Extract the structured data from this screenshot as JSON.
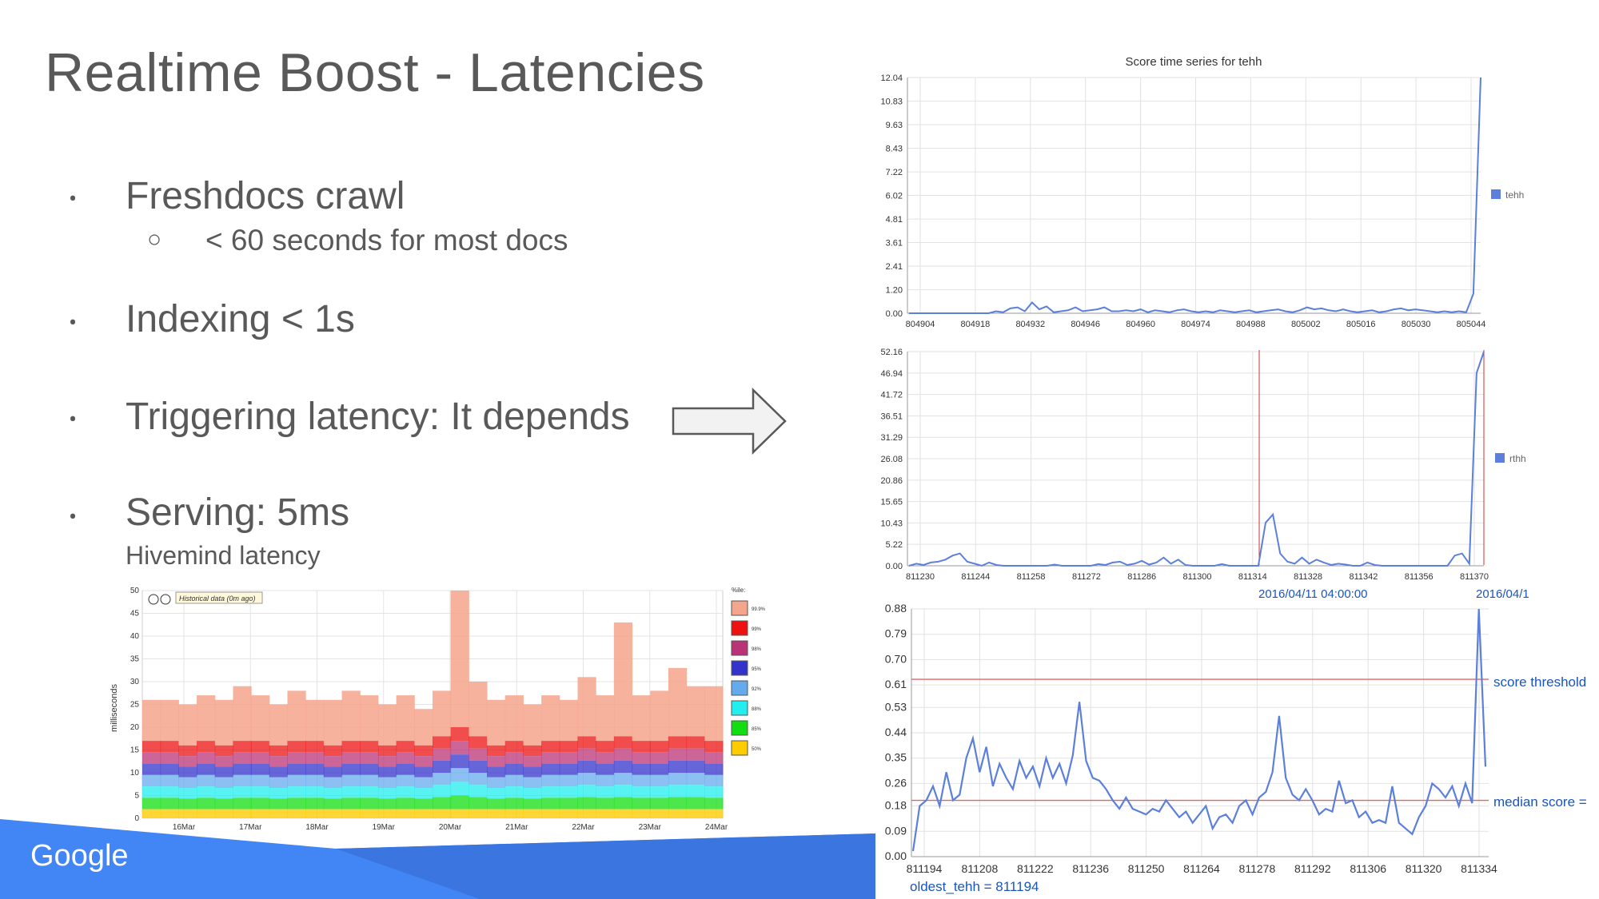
{
  "slide": {
    "title": "Realtime Boost - Latencies",
    "bullets": [
      {
        "text": "Freshdocs crawl",
        "sub": "< 60 seconds for most docs"
      },
      {
        "text": "Indexing < 1s"
      },
      {
        "text": "Triggering latency: It depends"
      },
      {
        "text": "Serving: 5ms",
        "caption": "Hivemind latency"
      }
    ],
    "bullet_glyph": "•",
    "sub_glyph": "○",
    "logo": "Google",
    "footer_color": "#4285f4"
  },
  "hivemind": {
    "badge": "Historical data (0m ago)",
    "ylabel": "milliseconds",
    "legend_title": "%ile:",
    "legend": [
      {
        "label": "99.9%",
        "color": "#f4a58c"
      },
      {
        "label": "99%",
        "color": "#ee1111"
      },
      {
        "label": "98%",
        "color": "#bb3377"
      },
      {
        "label": "95%",
        "color": "#3333cc"
      },
      {
        "label": "92%",
        "color": "#66aaee"
      },
      {
        "label": "88%",
        "color": "#22eeee"
      },
      {
        "label": "85%",
        "color": "#11dd11"
      },
      {
        "label": "50%",
        "color": "#ffcc00"
      }
    ]
  },
  "chart_data": [
    {
      "type": "area",
      "title": "",
      "ylabel": "milliseconds",
      "ylim": [
        0,
        50
      ],
      "yticks": [
        "0",
        "5",
        "10",
        "15",
        "20",
        "25",
        "30",
        "35",
        "40",
        "45",
        "50"
      ],
      "x_ticks": [
        "16Mar",
        "17Mar",
        "18Mar",
        "19Mar",
        "20Mar",
        "21Mar",
        "22Mar",
        "23Mar",
        "24Mar"
      ],
      "series": [
        {
          "name": "99.9%",
          "values": [
            26,
            26,
            25,
            27,
            26,
            29,
            27,
            25,
            28,
            26,
            26,
            28,
            27,
            25,
            27,
            24,
            28,
            50,
            30,
            26,
            27,
            25,
            27,
            26,
            31,
            27,
            43,
            27,
            28,
            33,
            29,
            29
          ]
        },
        {
          "name": "99%",
          "values": [
            17,
            17,
            16,
            17,
            16,
            17,
            17,
            16,
            17,
            17,
            16,
            17,
            17,
            16,
            17,
            16,
            18,
            20,
            18,
            16,
            17,
            16,
            17,
            17,
            18,
            17,
            18,
            17,
            17,
            18,
            18,
            17
          ]
        },
        {
          "name": "50%",
          "values": [
            2,
            2,
            2,
            2,
            2,
            2,
            2,
            2,
            2,
            2,
            2,
            2,
            2,
            2,
            2,
            2,
            2,
            2,
            2,
            2,
            2,
            2,
            2,
            2,
            2,
            2,
            2,
            2,
            2,
            2,
            2,
            2
          ]
        }
      ]
    },
    {
      "type": "line",
      "title": "Score time series for tehh",
      "ylim": [
        0,
        12.04
      ],
      "yticks": [
        "0.00",
        "1.20",
        "2.41",
        "3.61",
        "4.81",
        "6.02",
        "7.22",
        "8.43",
        "9.63",
        "10.83",
        "12.04"
      ],
      "x_ticks": [
        "804904",
        "804918",
        "804932",
        "804946",
        "804960",
        "804974",
        "804988",
        "805002",
        "805016",
        "805030",
        "805044"
      ],
      "series": [
        {
          "name": "tehh",
          "color": "#5b7fdb",
          "values": [
            0,
            0,
            0,
            0,
            0,
            0,
            0,
            0,
            0,
            0,
            0,
            0,
            0.1,
            0.05,
            0.25,
            0.3,
            0.1,
            0.55,
            0.2,
            0.35,
            0.05,
            0.1,
            0.15,
            0.3,
            0.1,
            0.15,
            0.2,
            0.3,
            0.1,
            0.1,
            0.15,
            0.1,
            0.2,
            0.05,
            0.15,
            0.1,
            0.05,
            0.15,
            0.2,
            0.1,
            0.05,
            0.1,
            0.05,
            0.15,
            0.1,
            0.05,
            0.1,
            0.15,
            0.05,
            0.1,
            0.15,
            0.2,
            0.1,
            0.05,
            0.15,
            0.3,
            0.2,
            0.25,
            0.15,
            0.1,
            0.2,
            0.1,
            0.05,
            0.1,
            0.15,
            0.05,
            0.1,
            0.2,
            0.25,
            0.15,
            0.2,
            0.15,
            0.1,
            0.05,
            0.1,
            0.05,
            0.1,
            0.05,
            1.0,
            12.04
          ]
        }
      ]
    },
    {
      "type": "line",
      "title": "",
      "ylim": [
        0,
        52.16
      ],
      "yticks": [
        "0.00",
        "5.22",
        "10.43",
        "15.65",
        "20.86",
        "26.08",
        "31.29",
        "36.51",
        "41.72",
        "46.94",
        "52.16"
      ],
      "x_ticks": [
        "811230",
        "811244",
        "811258",
        "811272",
        "811286",
        "811300",
        "811314",
        "811328",
        "811342",
        "811356",
        "811370"
      ],
      "annotations": [
        "2016/04/11 04:00:00",
        "2016/04/1"
      ],
      "series": [
        {
          "name": "rthh",
          "color": "#5b7fdb",
          "values": [
            0,
            0.5,
            0.2,
            0.8,
            1.0,
            1.5,
            2.5,
            3.0,
            1.0,
            0.5,
            0,
            0.8,
            0.2,
            0,
            0,
            0,
            0,
            0,
            0,
            0,
            0.3,
            0,
            0,
            0,
            0,
            0,
            0.4,
            0.2,
            0.8,
            1.0,
            0.2,
            0.5,
            1.2,
            0.3,
            0.8,
            2.0,
            0.5,
            1.5,
            0.2,
            0,
            0,
            0,
            0,
            0.4,
            0,
            0,
            0,
            0,
            0,
            10.5,
            12.5,
            3.0,
            1.0,
            0.5,
            2.0,
            0.5,
            1.5,
            0.8,
            0.2,
            0.5,
            0.3,
            0,
            0,
            0.8,
            0.2,
            0,
            0,
            0,
            0,
            0,
            0,
            0,
            0,
            0,
            0,
            2.5,
            3.0,
            0.5,
            46.94,
            52.16
          ]
        }
      ]
    },
    {
      "type": "line",
      "title": "",
      "ylim": [
        0,
        0.88
      ],
      "yticks": [
        "0.00",
        "0.09",
        "0.18",
        "0.26",
        "0.35",
        "0.44",
        "0.53",
        "0.61",
        "0.70",
        "0.79",
        "0.88"
      ],
      "x_ticks": [
        "811194",
        "811208",
        "811222",
        "811236",
        "811250",
        "811264",
        "811278",
        "811292",
        "811306",
        "811320",
        "811334"
      ],
      "annotations": [
        "score threshold",
        "median score =",
        "oldest_tehh = 811194"
      ],
      "thresholds": [
        {
          "name": "score threshold",
          "value": 0.63
        },
        {
          "name": "median score",
          "value": 0.2
        }
      ],
      "series": [
        {
          "name": "score",
          "color": "#5b7fdb",
          "values": [
            0.02,
            0.18,
            0.2,
            0.25,
            0.18,
            0.3,
            0.2,
            0.22,
            0.35,
            0.42,
            0.3,
            0.39,
            0.25,
            0.33,
            0.28,
            0.24,
            0.34,
            0.28,
            0.32,
            0.25,
            0.35,
            0.28,
            0.33,
            0.26,
            0.36,
            0.55,
            0.34,
            0.28,
            0.27,
            0.24,
            0.2,
            0.17,
            0.21,
            0.17,
            0.16,
            0.15,
            0.17,
            0.16,
            0.2,
            0.17,
            0.14,
            0.16,
            0.12,
            0.15,
            0.18,
            0.1,
            0.14,
            0.15,
            0.12,
            0.18,
            0.2,
            0.15,
            0.21,
            0.23,
            0.3,
            0.5,
            0.28,
            0.22,
            0.2,
            0.24,
            0.2,
            0.15,
            0.17,
            0.16,
            0.27,
            0.19,
            0.2,
            0.14,
            0.16,
            0.12,
            0.13,
            0.12,
            0.25,
            0.12,
            0.1,
            0.08,
            0.14,
            0.18,
            0.26,
            0.24,
            0.21,
            0.25,
            0.18,
            0.26,
            0.19,
            0.88,
            0.32
          ]
        }
      ]
    }
  ]
}
